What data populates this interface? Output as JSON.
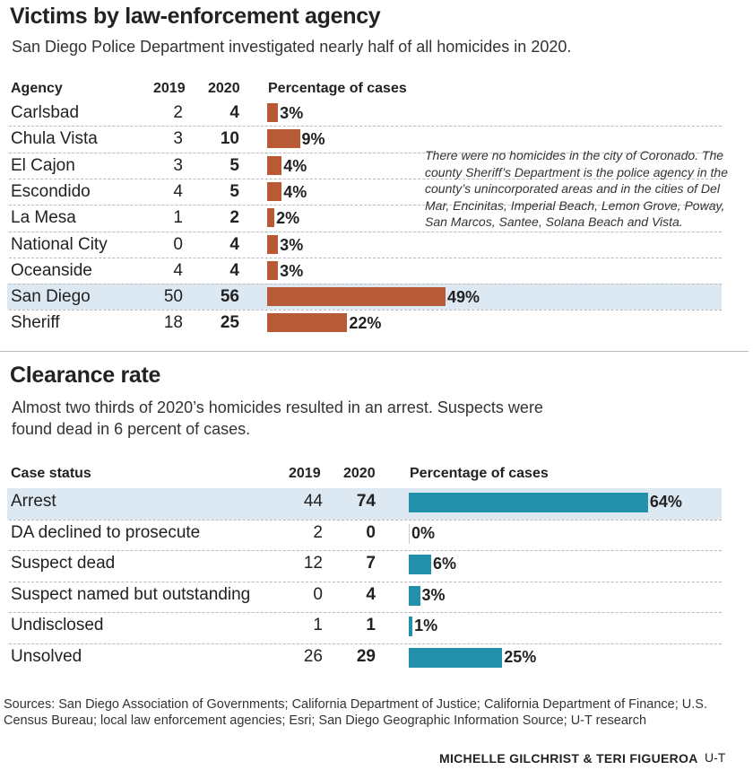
{
  "chart_data": [
    {
      "type": "bar",
      "title": "Victims by law-enforcement agency",
      "subtitle": "San Diego Police Department investigated nearly half of all homicides in 2020.",
      "columns": [
        "Agency",
        "2019",
        "2020",
        "Percentage of cases"
      ],
      "rows": [
        {
          "label": "Carlsbad",
          "y2019": 2,
          "y2020": 4,
          "pct": 3
        },
        {
          "label": "Chula Vista",
          "y2019": 3,
          "y2020": 10,
          "pct": 9
        },
        {
          "label": "El Cajon",
          "y2019": 3,
          "y2020": 5,
          "pct": 4
        },
        {
          "label": "Escondido",
          "y2019": 4,
          "y2020": 5,
          "pct": 4
        },
        {
          "label": "La Mesa",
          "y2019": 1,
          "y2020": 2,
          "pct": 2
        },
        {
          "label": "National City",
          "y2019": 0,
          "y2020": 4,
          "pct": 3
        },
        {
          "label": "Oceanside",
          "y2019": 4,
          "y2020": 4,
          "pct": 3
        },
        {
          "label": "San Diego",
          "y2019": 50,
          "y2020": 56,
          "pct": 49,
          "highlight": true
        },
        {
          "label": "Sheriff",
          "y2019": 18,
          "y2020": 25,
          "pct": 22
        }
      ],
      "bar_color": "#b85a36",
      "note": "There were no homicides in the city of Coronado. The county Sheriff’s Department is the police agency in the county’s unincorporated areas and in the cities of Del Mar, Encinitas, Imperial Beach, Lemon Grove, Poway, San Marcos, Santee, Solana Beach and Vista."
    },
    {
      "type": "bar",
      "title": "Clearance rate",
      "subtitle": "Almost two thirds of 2020’s homicides resulted in an arrest. Suspects were found dead in 6 percent of cases.",
      "columns": [
        "Case status",
        "2019",
        "2020",
        "Percentage of cases"
      ],
      "rows": [
        {
          "label": "Arrest",
          "y2019": 44,
          "y2020": 74,
          "pct": 64,
          "highlight": true
        },
        {
          "label": "DA declined to prosecute",
          "y2019": 2,
          "y2020": 0,
          "pct": 0
        },
        {
          "label": "Suspect dead",
          "y2019": 12,
          "y2020": 7,
          "pct": 6
        },
        {
          "label": "Suspect named but outstanding",
          "y2019": 0,
          "y2020": 4,
          "pct": 3
        },
        {
          "label": "Undisclosed",
          "y2019": 1,
          "y2020": 1,
          "pct": 1
        },
        {
          "label": "Unsolved",
          "y2019": 26,
          "y2020": 29,
          "pct": 25
        }
      ],
      "bar_color": "#2390ab"
    }
  ],
  "highlight_color": "#dde9f2",
  "sources": "Sources: San Diego Association of Governments; California Department of Justice; California Department of Finance; U.S. Census Bureau; local law enforcement agencies; Esri; San Diego Geographic Information Source; U-T research",
  "credit": "MICHELLE GILCHRIST & TERI FIGUEROA",
  "credit_org": "U-T"
}
